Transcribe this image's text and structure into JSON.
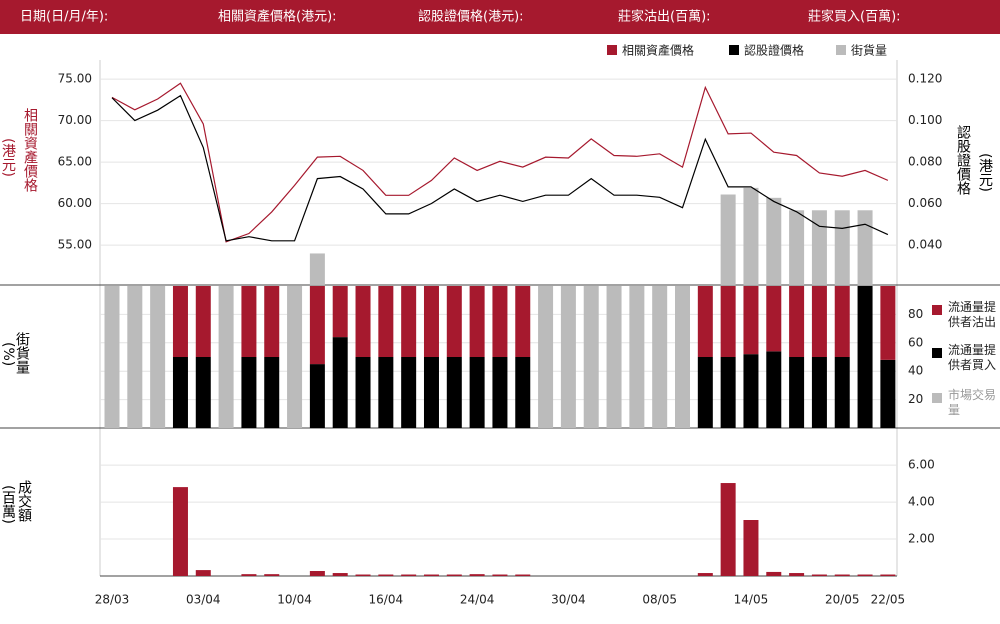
{
  "header": {
    "labels": [
      "日期(日/月/年):",
      "相關資產價格(港元):",
      "認股證價格(港元):",
      "莊家沽出(百萬):",
      "莊家買入(百萬):"
    ]
  },
  "chart_data": [
    {
      "type": "line",
      "y_label": "相關資產價格",
      "y_unit": "(港元)",
      "y2_label": "認股證價格",
      "y2_unit": "(港元)",
      "ylim": [
        50.2,
        77.3
      ],
      "yticks": [
        {
          "value": 55,
          "label": "55.00"
        },
        {
          "value": 60,
          "label": "60.00"
        },
        {
          "value": 65,
          "label": "65.00"
        },
        {
          "value": 70,
          "label": "70.00"
        },
        {
          "value": 75,
          "label": "75.00"
        }
      ],
      "y2lim": [
        0.0207,
        0.1292
      ],
      "y2ticks": [
        {
          "value": 0.04,
          "label": "0.040"
        },
        {
          "value": 0.06,
          "label": "0.060"
        },
        {
          "value": 0.08,
          "label": "0.080"
        },
        {
          "value": 0.1,
          "label": "0.100"
        },
        {
          "value": 0.12,
          "label": "0.120"
        }
      ],
      "grid": true,
      "series": [
        {
          "name": "相關資產價格",
          "color": "#a6192e",
          "values": [
            72.8,
            71.3,
            72.6,
            74.5,
            69.6,
            55.4,
            56.4,
            59.0,
            62.2,
            65.6,
            65.7,
            64.0,
            61.0,
            61.0,
            62.8,
            65.5,
            64.0,
            65.1,
            64.4,
            65.6,
            65.5,
            67.8,
            65.8,
            65.7,
            66.0,
            64.4,
            74.0,
            68.4,
            68.5,
            66.2,
            65.8,
            63.7,
            63.3,
            64.0,
            62.8
          ]
        },
        {
          "name": "認股證價格",
          "color": "#000000",
          "axis": "y2",
          "values": [
            0.111,
            0.1,
            0.105,
            0.112,
            0.087,
            0.042,
            0.044,
            0.042,
            0.042,
            0.072,
            0.073,
            0.067,
            0.055,
            0.055,
            0.06,
            0.067,
            0.061,
            0.064,
            0.061,
            0.064,
            0.064,
            0.072,
            0.064,
            0.064,
            0.063,
            0.058,
            0.091,
            0.068,
            0.068,
            0.061,
            0.056,
            0.049,
            0.048,
            0.05,
            0.045
          ]
        },
        {
          "name": "街貨量",
          "color": "#bbbbbb",
          "type": "bar",
          "values": [
            null,
            null,
            null,
            null,
            null,
            null,
            null,
            null,
            null,
            54.0,
            null,
            null,
            null,
            null,
            null,
            null,
            null,
            null,
            null,
            null,
            null,
            null,
            null,
            null,
            null,
            null,
            null,
            61.1,
            61.9,
            60.7,
            59.2,
            59.2,
            59.2,
            59.2,
            null
          ]
        }
      ]
    },
    {
      "type": "stacked_bar",
      "y_label": "街貨量",
      "y_unit": "(%)",
      "ylim": [
        0,
        100
      ],
      "yticks": [
        20,
        40,
        60,
        80
      ],
      "grid": true,
      "series": [
        {
          "name": "流通量提供者沽出",
          "color": "#a6192e",
          "values": [
            null,
            null,
            null,
            50,
            50,
            null,
            50,
            50,
            null,
            55,
            36,
            50,
            50,
            50,
            50,
            50,
            50,
            50,
            50,
            null,
            null,
            null,
            null,
            null,
            null,
            null,
            50,
            50,
            48,
            46,
            50,
            50,
            50,
            0,
            52
          ]
        },
        {
          "name": "流通量提供者買入",
          "color": "#000000",
          "values": [
            null,
            null,
            null,
            50,
            50,
            null,
            50,
            50,
            null,
            45,
            64,
            50,
            50,
            50,
            50,
            50,
            50,
            50,
            50,
            null,
            null,
            null,
            null,
            null,
            null,
            null,
            50,
            50,
            52,
            54,
            50,
            50,
            50,
            100,
            48
          ]
        },
        {
          "name": "市場交易量",
          "color": "#bbbbbb",
          "values": [
            100,
            100,
            100,
            null,
            null,
            100,
            null,
            null,
            100,
            null,
            null,
            null,
            null,
            null,
            null,
            null,
            null,
            null,
            null,
            100,
            100,
            100,
            100,
            100,
            100,
            100,
            null,
            null,
            null,
            null,
            null,
            null,
            null,
            null,
            null
          ]
        }
      ]
    },
    {
      "type": "bar",
      "y_label": "成交額",
      "y_unit": "(百萬)",
      "ylim": [
        0,
        7.9
      ],
      "yticks": [
        {
          "value": 2,
          "label": "2.00"
        },
        {
          "value": 4,
          "label": "4.00"
        },
        {
          "value": 6,
          "label": "6.00"
        }
      ],
      "grid": true,
      "color": "#a6192e",
      "categories": [
        "28/03",
        null,
        null,
        null,
        "03/04",
        null,
        null,
        null,
        "10/04",
        null,
        null,
        null,
        "16/04",
        null,
        null,
        null,
        "24/04",
        null,
        null,
        null,
        "30/04",
        null,
        null,
        null,
        "08/05",
        null,
        null,
        null,
        "14/05",
        null,
        null,
        null,
        "20/05",
        null,
        "22/05"
      ],
      "values": [
        null,
        null,
        null,
        4.81,
        0.32,
        null,
        0.1,
        0.1,
        null,
        0.27,
        0.16,
        0.08,
        0.08,
        0.08,
        0.08,
        0.08,
        0.1,
        0.08,
        0.08,
        null,
        null,
        null,
        null,
        null,
        null,
        null,
        0.16,
        5.03,
        3.03,
        0.22,
        0.16,
        0.08,
        0.08,
        0.08,
        0.08
      ]
    }
  ]
}
